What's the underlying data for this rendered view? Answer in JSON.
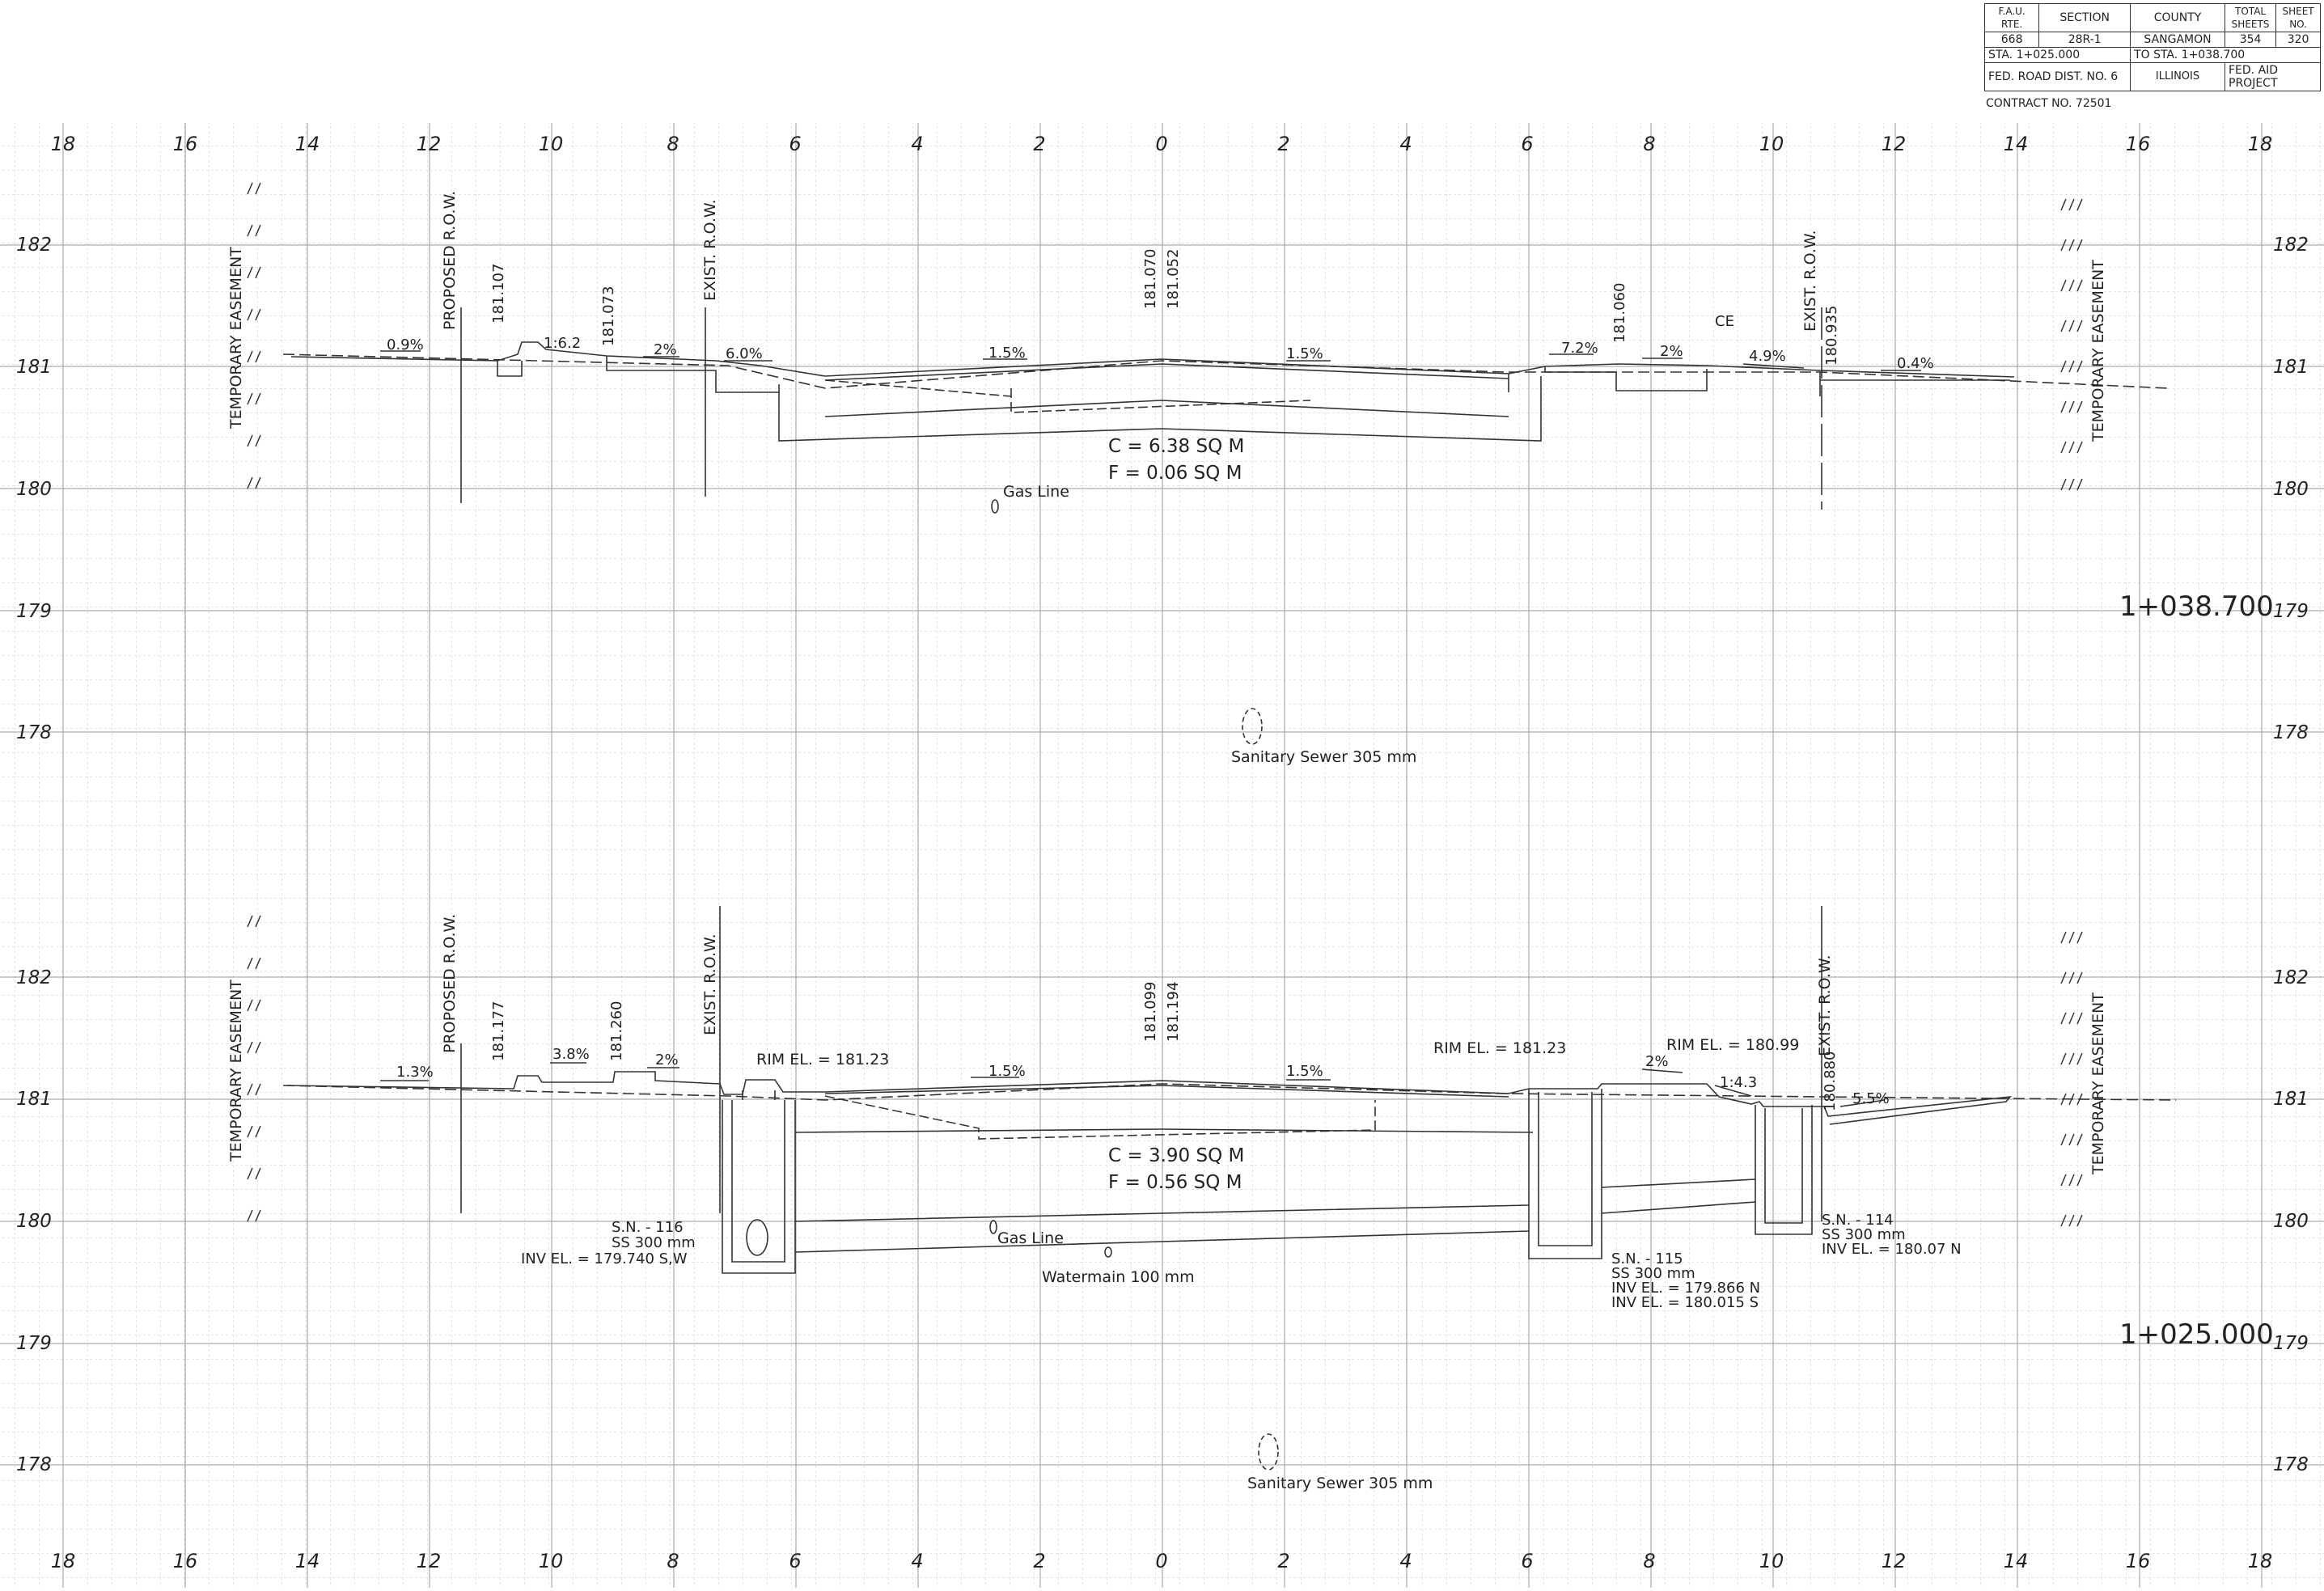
{
  "title_block": {
    "h_rte": "F.A.U. RTE.",
    "h_section": "SECTION",
    "h_county": "COUNTY",
    "h_total": "TOTAL SHEETS",
    "h_sheet": "SHEET NO.",
    "rte": "668",
    "section": "28R-1",
    "county": "SANGAMON",
    "total": "354",
    "sheet": "320",
    "sta_from": "STA. 1+025.000",
    "sta_to": "TO STA. 1+038.700",
    "district": "FED. ROAD DIST. NO. 6",
    "state": "ILLINOIS",
    "project": "FED. AID PROJECT",
    "contract": "CONTRACT NO. 72501"
  },
  "axis": {
    "x_labels": [
      "18",
      "16",
      "14",
      "12",
      "10",
      "8",
      "6",
      "4",
      "2",
      "0",
      "2",
      "4",
      "6",
      "8",
      "10",
      "12",
      "14",
      "16",
      "18"
    ],
    "elev_labels": [
      "182",
      "181",
      "180",
      "179",
      "178"
    ]
  },
  "sections": [
    {
      "station": "1+038.700",
      "left_easement": "TEMPORARY EASEMENT",
      "right_easement": "TEMPORARY EASEMENT",
      "proposed_row": "PROPOSED R.O.W.",
      "exist_row_left": "EXIST. R.O.W.",
      "exist_row_right": "EXIST. R.O.W.",
      "elev_left1": "181.107",
      "elev_left2": "181.073",
      "elev_center1": "181.070",
      "elev_center2": "181.052",
      "elev_right1": "181.060",
      "elev_right2": "180.935",
      "slopes": [
        "0.9%",
        "1:6.2",
        "2%",
        "6.0%",
        "1.5%",
        "1.5%",
        "7.2%",
        "2%",
        "4.9%",
        "0.4%"
      ],
      "ce": "CE",
      "cut": "C = 6.38 SQ M",
      "fill": "F = 0.06 SQ M",
      "gas_line": "Gas Line",
      "sewer": "Sanitary Sewer 305 mm"
    },
    {
      "station": "1+025.000",
      "left_easement": "TEMPORARY EASEMENT",
      "right_easement": "TEMPORARY EASEMENT",
      "proposed_row": "PROPOSED R.O.W.",
      "exist_row_left": "EXIST. R.O.W.",
      "exist_row_right": "EXIST. R.O.W.",
      "elev_left1": "181.177",
      "elev_left2": "181.260",
      "elev_center1": "181.099",
      "elev_center2": "181.194",
      "elev_right2": "180.880",
      "slopes": [
        "1.3%",
        "3.8%",
        "2%",
        "1.5%",
        "1.5%",
        "2%",
        "1:4.3",
        "5.5%"
      ],
      "rim1": "RIM EL. = 181.23",
      "rim2": "RIM EL. = 181.23",
      "rim3": "RIM EL. = 180.99",
      "cut": "C = 3.90 SQ M",
      "fill": "F = 0.56 SQ M",
      "gas_line": "Gas Line",
      "watermain": "Watermain 100 mm",
      "sewer": "Sanitary Sewer 305 mm",
      "mh116": [
        "S.N. - 116",
        "SS 300 mm",
        "INV EL. = 179.740 S,W"
      ],
      "mh115": [
        "S.N. - 115",
        "SS 300 mm",
        "INV EL. = 179.866 N",
        "INV EL. = 180.015 S"
      ],
      "mh114": [
        "S.N. - 114",
        "SS 300 mm",
        "INV EL. = 180.07 N"
      ]
    }
  ]
}
